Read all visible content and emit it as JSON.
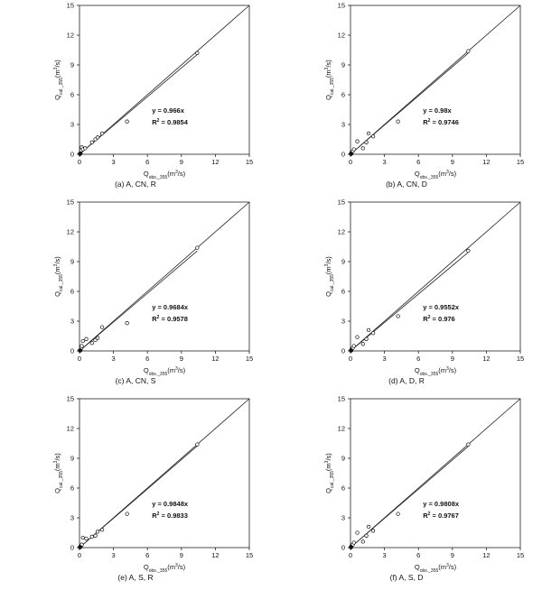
{
  "axis": {
    "ticks": [
      "0",
      "3",
      "6",
      "9",
      "12",
      "15"
    ],
    "ylabel_base": "Q",
    "ylabel_sub": "cal._355",
    "ylabel_unit": "(m",
    "ylabel_pow": "3",
    "ylabel_tail": "/s)",
    "xlabel_base": "Q",
    "xlabel_sub": "obs._355",
    "xlabel_unit": "(m",
    "xlabel_pow": "3",
    "xlabel_tail": "/s)"
  },
  "chart_data": [
    {
      "type": "scatter",
      "caption": "(a) A, CN, R",
      "xlim": [
        0,
        15
      ],
      "ylim": [
        0,
        15
      ],
      "grid": false,
      "equation": "y = 0.966x",
      "r2_label": "R",
      "r2_pow": "2",
      "r2_value": " = 0.9854",
      "slope": 0.966,
      "x": [
        0.05,
        0.1,
        0.15,
        0.2,
        0.3,
        0.5,
        1.1,
        1.4,
        1.6,
        2.0,
        4.2,
        10.4
      ],
      "y": [
        0.05,
        0.1,
        0.4,
        0.7,
        0.5,
        0.6,
        1.2,
        1.5,
        1.7,
        2.1,
        3.3,
        10.2
      ]
    },
    {
      "type": "scatter",
      "caption": "(b) A, CN, D",
      "xlim": [
        0,
        15
      ],
      "ylim": [
        0,
        15
      ],
      "grid": false,
      "equation": "y = 0.98x",
      "r2_label": "R",
      "r2_pow": "2",
      "r2_value": " = 0.9746",
      "slope": 0.98,
      "x": [
        0.05,
        0.1,
        0.2,
        0.3,
        0.6,
        1.1,
        1.4,
        1.6,
        2.0,
        4.2,
        10.4
      ],
      "y": [
        0.05,
        0.2,
        0.3,
        0.5,
        1.3,
        0.6,
        1.2,
        2.1,
        1.8,
        3.3,
        10.4
      ]
    },
    {
      "type": "scatter",
      "caption": "(c) A, CN, S",
      "xlim": [
        0,
        15
      ],
      "ylim": [
        0,
        15
      ],
      "grid": false,
      "equation": "y = 0.9684x",
      "r2_label": "R",
      "r2_pow": "2",
      "r2_value": " = 0.9578",
      "slope": 0.9684,
      "x": [
        0.05,
        0.1,
        0.15,
        0.2,
        0.3,
        0.6,
        1.1,
        1.4,
        1.6,
        2.0,
        4.2,
        10.4
      ],
      "y": [
        0.05,
        0.1,
        0.3,
        0.5,
        1.0,
        1.2,
        0.8,
        1.1,
        1.3,
        2.4,
        2.8,
        10.4
      ]
    },
    {
      "type": "scatter",
      "caption": "(d) A, D, R",
      "xlim": [
        0,
        15
      ],
      "ylim": [
        0,
        15
      ],
      "grid": false,
      "equation": "y = 0.9552x",
      "r2_label": "R",
      "r2_pow": "2",
      "r2_value": " = 0.976",
      "slope": 0.9552,
      "x": [
        0.05,
        0.1,
        0.2,
        0.3,
        0.6,
        1.1,
        1.4,
        1.6,
        2.0,
        4.2,
        10.4
      ],
      "y": [
        0.05,
        0.2,
        0.3,
        0.5,
        1.4,
        0.7,
        1.2,
        2.1,
        1.8,
        3.5,
        10.1
      ]
    },
    {
      "type": "scatter",
      "caption": "(e) A, S, R",
      "xlim": [
        0,
        15
      ],
      "ylim": [
        0,
        15
      ],
      "grid": false,
      "equation": "y = 0.9848x",
      "r2_label": "R",
      "r2_pow": "2",
      "r2_value": " = 0.9833",
      "slope": 0.9848,
      "x": [
        0.05,
        0.1,
        0.15,
        0.2,
        0.3,
        0.6,
        1.1,
        1.4,
        1.6,
        2.0,
        4.2,
        10.4
      ],
      "y": [
        0.05,
        0.1,
        0.2,
        0.3,
        1.0,
        0.9,
        1.1,
        1.2,
        1.6,
        1.8,
        3.4,
        10.4
      ]
    },
    {
      "type": "scatter",
      "caption": "(f) A, S, D",
      "xlim": [
        0,
        15
      ],
      "ylim": [
        0,
        15
      ],
      "grid": false,
      "equation": "y = 0.9808x",
      "r2_label": "R",
      "r2_pow": "2",
      "r2_value": " = 0.9767",
      "slope": 0.9808,
      "x": [
        0.05,
        0.1,
        0.2,
        0.3,
        0.6,
        1.1,
        1.4,
        1.6,
        2.0,
        4.2,
        10.4
      ],
      "y": [
        0.05,
        0.2,
        0.3,
        0.5,
        1.5,
        0.6,
        1.2,
        2.1,
        1.7,
        3.4,
        10.4
      ]
    }
  ]
}
